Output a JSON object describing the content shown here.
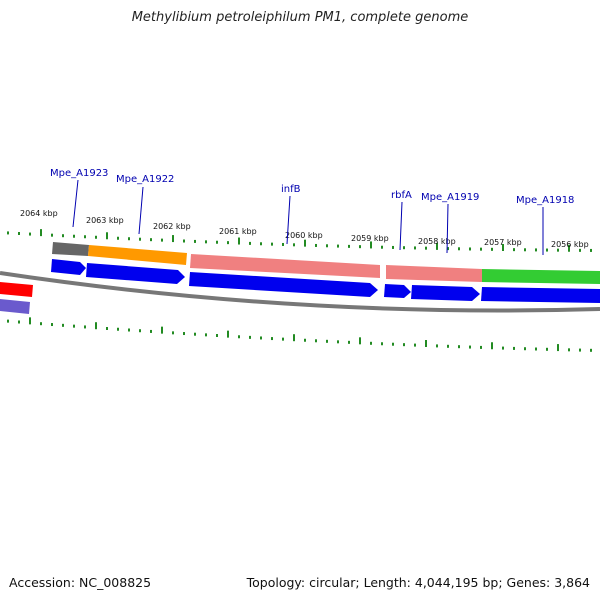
{
  "title": "Methylibium petroleiphilum PM1, complete genome",
  "footer": {
    "accession": "Accession: NC_008825",
    "summary": "Topology: circular; Length: 4,044,195 bp; Genes: 3,864"
  },
  "kbp_labels": [
    "2064 kbp",
    "2063 kbp",
    "2062 kbp",
    "2061 kbp",
    "2060 kbp",
    "2059 kbp",
    "2058 kbp",
    "2057 kbp",
    "2056 kbp"
  ],
  "gene_labels": [
    "Mpe_A1923",
    "Mpe_A1922",
    "infB",
    "rbfA",
    "Mpe_A1919",
    "Mpe_A1918"
  ],
  "colors": {
    "cds_blue": "#0000ee",
    "feature_gray": "#666666",
    "feature_orange": "#ff9900",
    "feature_pink": "#f08080",
    "feature_green": "#33cc33",
    "feature_red": "#ff0000",
    "feature_purple": "#6a5acd",
    "tick_green": "#228b22",
    "backbone": "#777777"
  }
}
